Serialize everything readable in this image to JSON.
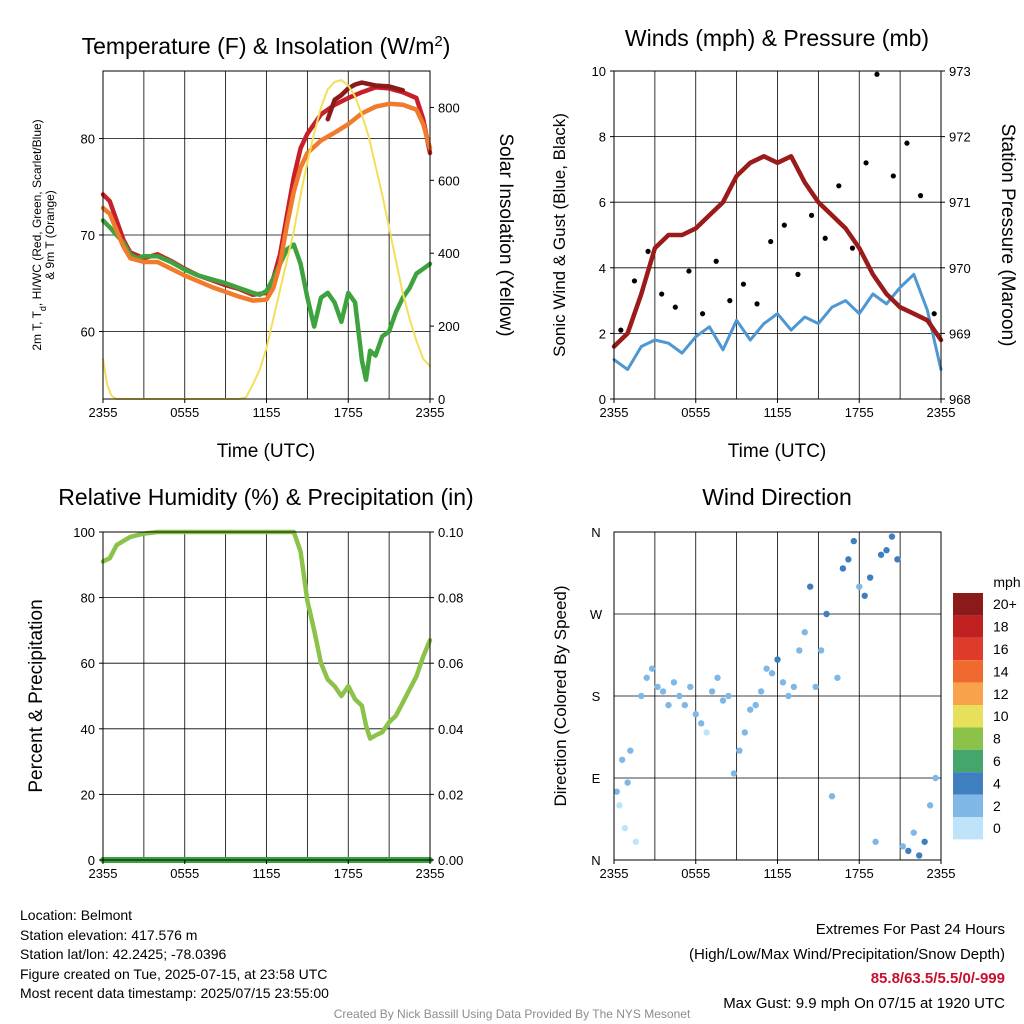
{
  "info": {
    "location": "Location: Belmont",
    "elevation": "Station elevation: 417.576 m",
    "latlon": "Station lat/lon: 42.2425; -78.0396",
    "created": "Figure created on Tue, 2025-07-15, at 23:58 UTC",
    "recent": "Most recent data timestamp: 2025/07/15 23:55:00"
  },
  "extremes": {
    "title": "Extremes For Past 24 Hours",
    "subtitle": "(High/Low/Max Wind/Precipitation/Snow Depth)",
    "values": "85.8/63.5/5.5/0/-999",
    "gust": "Max Gust: 9.9 mph On 07/15 at 1920 UTC"
  },
  "credit": "Created By Nick Bassill Using Data Provided By The NYS Mesonet",
  "colors": {
    "temperature": "#c8202a",
    "heat_index": "#8b1a1a",
    "dewpoint": "#3ea33e",
    "temp_9m": "#f07b2c",
    "insolation": "#f4df5a",
    "wind": "#4f97d2",
    "gust": "#000000",
    "pressure": "#9b1b1b",
    "humidity": "#8cc24a",
    "precipitation": "#3aa23e"
  },
  "chart_data": [
    {
      "type": "line",
      "title": "Temperature (F) & Insolation (W/m²)",
      "xlabel": "Time (UTC)",
      "ylabel": "2m T, Td, HI/WC (Red, Green, Scarlet/Blue) & 9m T (Orange)",
      "ylabel_lines": [
        "2m T, T",
        "d",
        ", HI/WC (Red, Green, Scarlet/Blue)",
        "& 9m T (Orange)"
      ],
      "y2label": "Solar Insolation (Yellow)",
      "x_ticks": [
        "2355",
        "0555",
        "1155",
        "1755",
        "2355"
      ],
      "ylim": [
        53,
        87
      ],
      "y_ticks": [
        60,
        70,
        80
      ],
      "y2lim": [
        0,
        900
      ],
      "y2_ticks": [
        0,
        200,
        400,
        600,
        800
      ],
      "x_hours": [
        0,
        24
      ],
      "series": [
        {
          "name": "2m T",
          "axis": "left",
          "color": "#c8202a",
          "x": [
            0,
            0.5,
            1,
            1.5,
            2,
            3,
            4,
            5,
            6,
            7,
            8,
            9,
            10,
            11,
            12,
            12.5,
            13,
            13.5,
            14,
            14.5,
            15,
            16,
            17,
            18,
            19,
            20,
            21,
            22,
            23,
            23.5,
            24
          ],
          "y": [
            74.2,
            73.5,
            71.5,
            69.5,
            68.2,
            67.6,
            68.0,
            67.3,
            66.5,
            65.8,
            65.3,
            64.8,
            64.4,
            63.8,
            64.0,
            65.5,
            68.0,
            72.0,
            76.0,
            79.0,
            80.5,
            82.5,
            83.5,
            84.2,
            84.8,
            85.3,
            85.2,
            84.8,
            84.2,
            82.0,
            78.5
          ]
        },
        {
          "name": "Heat Index",
          "axis": "left",
          "color": "#8b1a1a",
          "x": [
            16.5,
            17,
            17.5,
            18,
            18.5,
            19,
            20,
            21,
            22
          ],
          "y": [
            82.0,
            84.0,
            84.5,
            85.2,
            85.6,
            85.8,
            85.5,
            85.4,
            85.0
          ]
        },
        {
          "name": "2m Td",
          "axis": "left",
          "color": "#3ea33e",
          "x": [
            0,
            0.5,
            1,
            1.5,
            2,
            2.5,
            3,
            4,
            5,
            6,
            7,
            8,
            9,
            10,
            11,
            11.5,
            12,
            12.5,
            13,
            13.5,
            14,
            14.5,
            15,
            15.5,
            16,
            16.5,
            17,
            17.5,
            18,
            18.5,
            19,
            19.3,
            19.6,
            20,
            20.5,
            21,
            21.5,
            22,
            22.5,
            23,
            23.5,
            24
          ],
          "y": [
            71.5,
            70.8,
            70.0,
            69.2,
            68.0,
            67.6,
            67.8,
            67.8,
            67.2,
            66.4,
            65.8,
            65.4,
            65.0,
            64.5,
            64.0,
            63.8,
            64.2,
            65.5,
            67.0,
            68.5,
            69.0,
            67.0,
            63.5,
            60.5,
            63.5,
            64.0,
            63.0,
            61.0,
            64.0,
            63.0,
            57.0,
            55.0,
            58.0,
            57.5,
            59.5,
            60.0,
            62.0,
            63.5,
            64.5,
            66.0,
            66.5,
            67.0
          ]
        },
        {
          "name": "9m T",
          "axis": "left",
          "color": "#f07b2c",
          "x": [
            0,
            0.5,
            1,
            1.5,
            2,
            3,
            4,
            5,
            6,
            7,
            8,
            9,
            10,
            11,
            12,
            12.5,
            13,
            13.5,
            14,
            14.5,
            15,
            16,
            17,
            18,
            19,
            20,
            21,
            22,
            23,
            23.5,
            24
          ],
          "y": [
            72.8,
            72.2,
            70.5,
            68.8,
            67.6,
            67.2,
            67.2,
            66.5,
            65.8,
            65.2,
            64.6,
            64.1,
            63.6,
            63.2,
            63.3,
            64.5,
            67.0,
            71.0,
            74.5,
            77.0,
            78.5,
            79.8,
            80.6,
            81.5,
            82.6,
            83.3,
            83.6,
            83.5,
            83.0,
            81.5,
            79.0
          ]
        },
        {
          "name": "Solar Insolation",
          "axis": "right",
          "color": "#f4df5a",
          "x": [
            0,
            0.3,
            0.6,
            1,
            2,
            4,
            6,
            8,
            10,
            10.5,
            11,
            11.5,
            12,
            12.5,
            13,
            13.5,
            14,
            14.5,
            15,
            15.5,
            16,
            16.5,
            17,
            17.5,
            18,
            18.5,
            19,
            19.5,
            20,
            20.5,
            21,
            21.5,
            22,
            22.5,
            23,
            23.5,
            24
          ],
          "y": [
            110,
            40,
            10,
            0,
            0,
            0,
            0,
            0,
            0,
            5,
            40,
            80,
            140,
            220,
            300,
            380,
            460,
            560,
            650,
            730,
            800,
            850,
            870,
            875,
            860,
            830,
            780,
            720,
            640,
            560,
            470,
            380,
            290,
            220,
            160,
            110,
            90
          ]
        }
      ]
    },
    {
      "type": "line",
      "title": "Winds (mph) & Pressure (mb)",
      "xlabel": "Time (UTC)",
      "ylabel": "Sonic Wind & Gust (Blue, Black)",
      "y2label": "Station Pressure (Maroon)",
      "x_ticks": [
        "2355",
        "0555",
        "1155",
        "1755",
        "2355"
      ],
      "ylim": [
        0,
        10
      ],
      "y_ticks": [
        0,
        2,
        4,
        6,
        8,
        10
      ],
      "y2lim": [
        968,
        973
      ],
      "y2_ticks": [
        968,
        969,
        970,
        971,
        972,
        973
      ],
      "series": [
        {
          "name": "Sonic Wind",
          "axis": "left",
          "color": "#4f97d2",
          "x": [
            0,
            1,
            2,
            3,
            4,
            5,
            6,
            7,
            8,
            9,
            10,
            11,
            12,
            13,
            14,
            15,
            16,
            17,
            18,
            19,
            20,
            21,
            22,
            23,
            24
          ],
          "y": [
            1.2,
            0.9,
            1.6,
            1.8,
            1.7,
            1.4,
            1.9,
            2.2,
            1.5,
            2.4,
            1.8,
            2.3,
            2.6,
            2.1,
            2.5,
            2.3,
            2.8,
            3.0,
            2.6,
            3.2,
            2.9,
            3.4,
            3.8,
            2.7,
            0.9
          ]
        },
        {
          "name": "Gust",
          "axis": "left",
          "color": "#000000",
          "x": [
            0.5,
            1.5,
            2.5,
            3.5,
            4.5,
            5.5,
            6.5,
            7.5,
            8.5,
            9.5,
            10.5,
            11.5,
            12.5,
            13.5,
            14.5,
            15.5,
            16.5,
            17.5,
            18.5,
            19.3,
            20.5,
            21.5,
            22.5,
            23.5
          ],
          "y": [
            2.1,
            3.6,
            4.5,
            3.2,
            2.8,
            3.9,
            2.6,
            4.2,
            3.0,
            3.5,
            2.9,
            4.8,
            5.3,
            3.8,
            5.6,
            4.9,
            6.5,
            4.6,
            7.2,
            9.9,
            6.8,
            7.8,
            6.2,
            2.6
          ]
        },
        {
          "name": "Station Pressure",
          "axis": "right",
          "color": "#9b1b1b",
          "x": [
            0,
            1,
            2,
            3,
            4,
            5,
            6,
            7,
            8,
            9,
            10,
            11,
            12,
            13,
            14,
            15,
            16,
            17,
            18,
            19,
            20,
            21,
            22,
            23,
            24
          ],
          "y": [
            968.8,
            969.0,
            969.6,
            970.3,
            970.5,
            970.5,
            970.6,
            970.8,
            971.0,
            971.4,
            971.6,
            971.7,
            971.6,
            971.7,
            971.3,
            971.0,
            970.8,
            970.6,
            970.3,
            969.9,
            969.6,
            969.4,
            969.3,
            969.2,
            968.9
          ]
        }
      ]
    },
    {
      "type": "line",
      "title": "Relative Humidity (%) & Precipitation (in)",
      "ylabel": "Percent & Precipitation",
      "x_ticks": [
        "2355",
        "0555",
        "1155",
        "1755",
        "2355"
      ],
      "ylim": [
        0,
        100
      ],
      "y_ticks": [
        0,
        20,
        40,
        60,
        80,
        100
      ],
      "y2lim": [
        0,
        0.1
      ],
      "y2_ticks": [
        "0.00",
        "0.02",
        "0.04",
        "0.06",
        "0.08",
        "0.10"
      ],
      "series": [
        {
          "name": "Relative Humidity",
          "axis": "left",
          "color": "#8cc24a",
          "x": [
            0,
            0.5,
            1,
            2,
            3,
            4,
            5,
            6,
            8,
            10,
            12,
            13,
            14,
            14.5,
            15,
            15.5,
            16,
            16.5,
            17,
            17.5,
            18,
            18.5,
            19,
            19.3,
            19.6,
            20,
            20.5,
            21,
            21.5,
            22,
            22.5,
            23,
            23.5,
            24
          ],
          "y": [
            91,
            92,
            96,
            98.5,
            99.5,
            100,
            100,
            100,
            100,
            100,
            100,
            100,
            100,
            94,
            79,
            70,
            60,
            55,
            53,
            50,
            53,
            49,
            47,
            41,
            37,
            38,
            39,
            42,
            44,
            48,
            52,
            56,
            62,
            67
          ]
        },
        {
          "name": "Precipitation",
          "axis": "left",
          "color": "#3aa23e",
          "x": [
            0,
            24
          ],
          "y": [
            0,
            0
          ]
        }
      ]
    },
    {
      "type": "scatter",
      "title": "Wind Direction",
      "ylabel": "Direction (Colored By Speed)",
      "x_ticks": [
        "2355",
        "0555",
        "1155",
        "1755",
        "2355"
      ],
      "y_ticks": [
        "N",
        "E",
        "S",
        "W",
        "N"
      ],
      "ylim": [
        0,
        360
      ],
      "legend_title": "mph",
      "legend_labels": [
        "20+",
        "18",
        "16",
        "14",
        "12",
        "10",
        "8",
        "6",
        "4",
        "2",
        "0"
      ],
      "legend_colors": [
        "#8b1a1a",
        "#c0201f",
        "#df3b2b",
        "#f0692e",
        "#f8a34b",
        "#e8df5a",
        "#8cc24a",
        "#44a66a",
        "#3f7fbf",
        "#7fb8e6",
        "#bfe4fa"
      ],
      "x": [
        0.2,
        0.4,
        0.6,
        0.8,
        1.0,
        1.2,
        1.6,
        2.0,
        2.4,
        2.8,
        3.2,
        3.6,
        4.0,
        4.4,
        4.8,
        5.2,
        5.6,
        6.0,
        6.4,
        6.8,
        7.2,
        7.6,
        8.0,
        8.4,
        8.8,
        9.2,
        9.6,
        10.0,
        10.4,
        10.8,
        11.2,
        11.6,
        12.0,
        12.4,
        12.8,
        13.2,
        13.6,
        14.0,
        14.4,
        14.8,
        15.2,
        15.6,
        16.0,
        16.4,
        16.8,
        17.2,
        17.6,
        18.0,
        18.4,
        18.8,
        19.2,
        19.6,
        20.0,
        20.4,
        20.8,
        21.2,
        21.6,
        22.0,
        22.4,
        22.8,
        23.2,
        23.6
      ],
      "y": [
        75,
        60,
        110,
        35,
        85,
        120,
        20,
        180,
        200,
        210,
        190,
        185,
        170,
        195,
        180,
        170,
        190,
        160,
        150,
        140,
        185,
        200,
        175,
        180,
        95,
        120,
        140,
        165,
        170,
        185,
        210,
        205,
        220,
        195,
        180,
        190,
        230,
        250,
        300,
        190,
        230,
        270,
        70,
        200,
        320,
        330,
        350,
        300,
        290,
        310,
        20,
        335,
        340,
        355,
        330,
        15,
        10,
        30,
        5,
        20,
        60,
        90
      ],
      "speed": [
        2,
        1,
        2,
        1,
        2,
        2,
        1,
        3,
        2,
        2,
        3,
        3,
        2,
        3,
        3,
        2,
        3,
        2,
        2,
        1,
        3,
        3,
        2,
        3,
        2,
        2,
        3,
        3,
        2,
        3,
        3,
        3,
        4,
        3,
        2,
        3,
        3,
        3,
        4,
        2,
        3,
        4,
        2,
        3,
        4,
        4,
        5,
        3,
        4,
        4,
        3,
        5,
        4,
        5,
        4,
        3,
        4,
        3,
        5,
        4,
        2,
        2
      ]
    }
  ]
}
